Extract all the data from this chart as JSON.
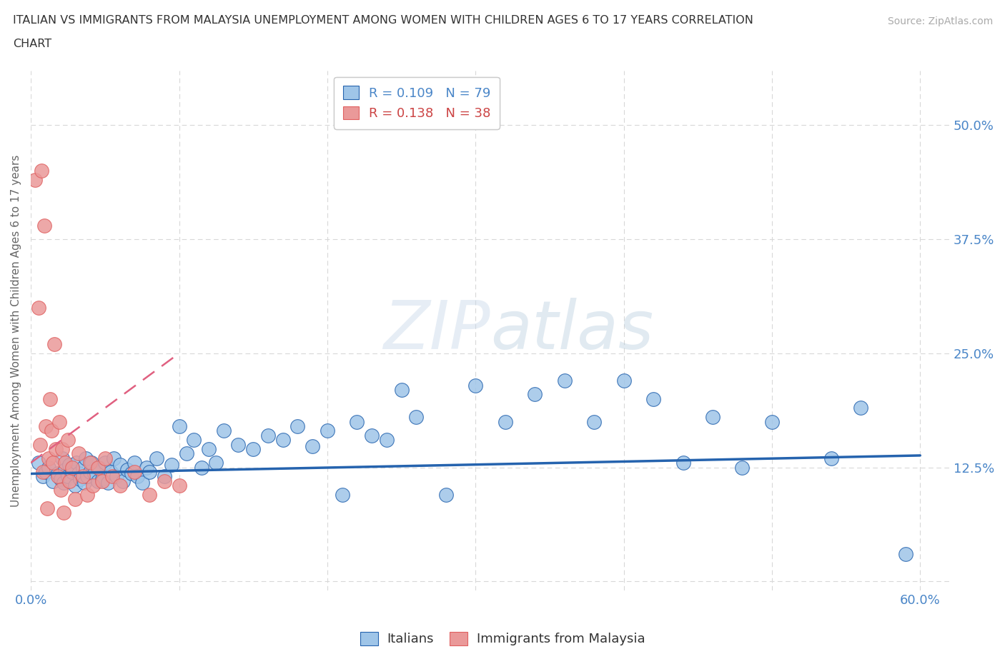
{
  "title_line1": "ITALIAN VS IMMIGRANTS FROM MALAYSIA UNEMPLOYMENT AMONG WOMEN WITH CHILDREN AGES 6 TO 17 YEARS CORRELATION",
  "title_line2": "CHART",
  "source": "Source: ZipAtlas.com",
  "ylabel_left": "Unemployment Among Women with Children Ages 6 to 17 years",
  "xlim": [
    0.0,
    0.62
  ],
  "ylim": [
    -0.01,
    0.56
  ],
  "right_yticks": [
    0.125,
    0.25,
    0.375,
    0.5
  ],
  "right_yticklabels": [
    "12.5%",
    "25.0%",
    "37.5%",
    "50.0%"
  ],
  "legend_r1_text": "R = 0.109   N = 79",
  "legend_r2_text": "R = 0.138   N = 38",
  "legend_r1_color": "#4a86c8",
  "legend_r2_color": "#cc4444",
  "italian_color": "#9fc5e8",
  "malaysia_color": "#ea9999",
  "trendline_italian_color": "#2563ae",
  "trendline_malaysia_color": "#e06080",
  "watermark_color": "#c8d8ea",
  "background_color": "#ffffff",
  "grid_color": "#d8d8d8",
  "title_color": "#333333",
  "right_tick_color": "#4a86c8",
  "bottom_tick_color": "#4a86c8",
  "italians_x": [
    0.005,
    0.008,
    0.01,
    0.012,
    0.015,
    0.018,
    0.02,
    0.021,
    0.022,
    0.023,
    0.025,
    0.026,
    0.028,
    0.03,
    0.031,
    0.032,
    0.033,
    0.035,
    0.036,
    0.037,
    0.038,
    0.04,
    0.041,
    0.043,
    0.045,
    0.046,
    0.048,
    0.05,
    0.052,
    0.054,
    0.056,
    0.058,
    0.06,
    0.062,
    0.065,
    0.068,
    0.07,
    0.072,
    0.075,
    0.078,
    0.08,
    0.085,
    0.09,
    0.095,
    0.1,
    0.105,
    0.11,
    0.115,
    0.12,
    0.125,
    0.13,
    0.14,
    0.15,
    0.16,
    0.17,
    0.18,
    0.19,
    0.2,
    0.21,
    0.22,
    0.23,
    0.24,
    0.25,
    0.26,
    0.28,
    0.3,
    0.32,
    0.34,
    0.36,
    0.38,
    0.4,
    0.42,
    0.44,
    0.46,
    0.48,
    0.5,
    0.54,
    0.56,
    0.59
  ],
  "italians_y": [
    0.13,
    0.115,
    0.12,
    0.125,
    0.11,
    0.118,
    0.112,
    0.135,
    0.108,
    0.122,
    0.115,
    0.128,
    0.12,
    0.105,
    0.13,
    0.118,
    0.112,
    0.125,
    0.108,
    0.135,
    0.115,
    0.12,
    0.13,
    0.118,
    0.11,
    0.125,
    0.112,
    0.13,
    0.108,
    0.12,
    0.135,
    0.115,
    0.128,
    0.11,
    0.122,
    0.118,
    0.13,
    0.115,
    0.108,
    0.125,
    0.12,
    0.135,
    0.115,
    0.128,
    0.17,
    0.14,
    0.155,
    0.125,
    0.145,
    0.13,
    0.165,
    0.15,
    0.145,
    0.16,
    0.155,
    0.17,
    0.148,
    0.165,
    0.095,
    0.175,
    0.16,
    0.155,
    0.21,
    0.18,
    0.095,
    0.215,
    0.175,
    0.205,
    0.22,
    0.175,
    0.22,
    0.2,
    0.13,
    0.18,
    0.125,
    0.175,
    0.135,
    0.19,
    0.03
  ],
  "malaysia_x": [
    0.003,
    0.005,
    0.006,
    0.007,
    0.008,
    0.009,
    0.01,
    0.011,
    0.012,
    0.013,
    0.014,
    0.015,
    0.016,
    0.017,
    0.018,
    0.019,
    0.02,
    0.021,
    0.022,
    0.023,
    0.025,
    0.026,
    0.028,
    0.03,
    0.032,
    0.035,
    0.038,
    0.04,
    0.042,
    0.045,
    0.048,
    0.05,
    0.055,
    0.06,
    0.07,
    0.08,
    0.09,
    0.1
  ],
  "malaysia_y": [
    0.44,
    0.3,
    0.15,
    0.45,
    0.12,
    0.39,
    0.17,
    0.08,
    0.135,
    0.2,
    0.165,
    0.13,
    0.26,
    0.145,
    0.115,
    0.175,
    0.1,
    0.145,
    0.075,
    0.13,
    0.155,
    0.11,
    0.125,
    0.09,
    0.14,
    0.115,
    0.095,
    0.13,
    0.105,
    0.125,
    0.11,
    0.135,
    0.115,
    0.105,
    0.12,
    0.095,
    0.11,
    0.105
  ],
  "ita_trendline_x": [
    0.0,
    0.6
  ],
  "ita_trendline_y": [
    0.118,
    0.138
  ],
  "mal_trendline_x": [
    0.0,
    0.1
  ],
  "mal_trendline_y": [
    0.13,
    0.25
  ]
}
